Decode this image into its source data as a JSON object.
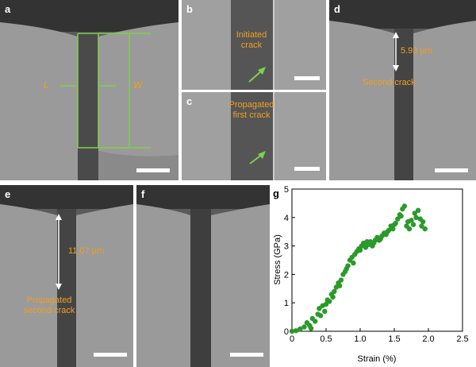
{
  "panels": {
    "a": {
      "label": "a",
      "L": "L",
      "W": "W"
    },
    "b": {
      "label": "b",
      "annotation_line1": "Initiated",
      "annotation_line2": "crack"
    },
    "c": {
      "label": "c",
      "annotation_line1": "Propagated",
      "annotation_line2": "first crack"
    },
    "d": {
      "label": "d",
      "measurement": "5.93 µm",
      "annotation": "Second crack"
    },
    "e": {
      "label": "e",
      "measurement": "11.07 µm",
      "annotation_line1": "Propagated",
      "annotation_line2": "second crack"
    },
    "f": {
      "label": "f"
    },
    "g": {
      "label": "g"
    }
  },
  "colors": {
    "annotation": "#f0a020",
    "guide": "#7fd04a",
    "points": "#2a9a2a"
  },
  "chart_data": {
    "type": "scatter",
    "title": "",
    "xlabel": "Strain (%)",
    "ylabel": "Stress (GPa)",
    "xlim": [
      0,
      2.5
    ],
    "ylim": [
      0,
      5
    ],
    "xticks": [
      "0",
      "0.5",
      "1.0",
      "1.5",
      "2.0",
      "2.5"
    ],
    "yticks": [
      "0",
      "1",
      "2",
      "3",
      "4",
      "5"
    ],
    "x": [
      0.0,
      0.06,
      0.12,
      0.18,
      0.22,
      0.26,
      0.3,
      0.34,
      0.38,
      0.42,
      0.45,
      0.48,
      0.52,
      0.55,
      0.58,
      0.62,
      0.65,
      0.68,
      0.72,
      0.75,
      0.78,
      0.82,
      0.85,
      0.88,
      0.92,
      0.95,
      0.98,
      1.02,
      1.05,
      1.08,
      1.12,
      1.15,
      1.18,
      1.22,
      1.25,
      1.28,
      1.32,
      1.35,
      1.38,
      1.42,
      1.45,
      1.48,
      1.52,
      1.55,
      1.58,
      1.62,
      1.65,
      1.68,
      1.72,
      1.75,
      1.78,
      1.82,
      1.85,
      1.88,
      1.92,
      1.95,
      0.28,
      0.4,
      0.5,
      0.6,
      0.7,
      0.8,
      0.9,
      1.0,
      1.1,
      1.2,
      1.3,
      1.4,
      1.5,
      1.6,
      1.7,
      1.8,
      1.9
    ],
    "y": [
      0.0,
      0.02,
      0.08,
      0.15,
      0.3,
      0.2,
      0.45,
      0.35,
      0.6,
      0.55,
      0.9,
      0.7,
      1.1,
      1.05,
      1.3,
      1.4,
      1.55,
      1.7,
      1.8,
      2.0,
      2.1,
      2.3,
      2.5,
      2.6,
      2.7,
      2.8,
      2.9,
      3.0,
      3.1,
      2.95,
      3.05,
      3.15,
      3.0,
      3.2,
      3.3,
      3.2,
      3.35,
      3.45,
      3.4,
      3.55,
      3.7,
      3.6,
      3.8,
      3.95,
      4.1,
      4.3,
      4.4,
      3.7,
      3.6,
      3.9,
      3.75,
      4.0,
      4.25,
      3.95,
      3.85,
      3.6,
      0.1,
      0.8,
      0.95,
      1.2,
      1.6,
      2.2,
      2.4,
      2.85,
      3.15,
      3.1,
      3.25,
      3.5,
      3.75,
      4.05,
      3.85,
      4.15,
      3.7
    ]
  }
}
